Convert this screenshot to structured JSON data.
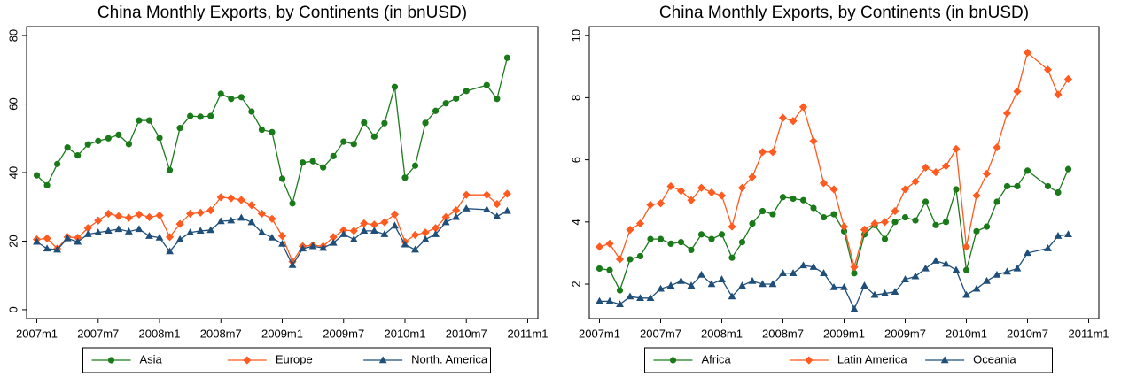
{
  "chart_data": [
    {
      "type": "line",
      "title": "China Monthly Exports, by Continents (in bnUSD)",
      "x": [
        0,
        1,
        2,
        3,
        4,
        5,
        6,
        7,
        8,
        9,
        10,
        11,
        12,
        13,
        14,
        15,
        16,
        17,
        18,
        19,
        20,
        21,
        22,
        23,
        24,
        25,
        26,
        27,
        28,
        29,
        30,
        31,
        32,
        33,
        34,
        35,
        36,
        37,
        38,
        39,
        40,
        41,
        42,
        44,
        45,
        46
      ],
      "xlim": [
        -1,
        49
      ],
      "xticks": [
        {
          "value": 0,
          "label": "2007m1"
        },
        {
          "value": 6,
          "label": "2007m7"
        },
        {
          "value": 12,
          "label": "2008m1"
        },
        {
          "value": 18,
          "label": "2008m7"
        },
        {
          "value": 24,
          "label": "2009m1"
        },
        {
          "value": 30,
          "label": "2009m7"
        },
        {
          "value": 36,
          "label": "2010m1"
        },
        {
          "value": 42,
          "label": "2010m7"
        },
        {
          "value": 48,
          "label": "2011m1"
        }
      ],
      "ylim": [
        -2.6,
        82.6
      ],
      "yticks": [
        0,
        20,
        40,
        60,
        80
      ],
      "legend": "bottom",
      "series": [
        {
          "name": "Asia",
          "color": "#1a7a1a",
          "marker": "circle",
          "values": [
            39.2,
            36.3,
            42.5,
            47.3,
            45,
            48.2,
            49.2,
            50,
            51,
            48.3,
            55.2,
            55.2,
            50.1,
            40.7,
            53,
            56.5,
            56.3,
            56.5,
            63,
            61.5,
            62,
            57.8,
            52.5,
            51.8,
            38.2,
            31,
            42.9,
            43.3,
            41.5,
            44.8,
            49,
            48.3,
            54.6,
            50.5,
            54.4,
            65,
            38.5,
            42,
            54.5,
            58,
            60.2,
            61.6,
            63.8,
            65.5,
            61.5,
            73.5
          ]
        },
        {
          "name": "Europe",
          "color": "#ff5a1f",
          "marker": "diamond",
          "values": [
            20.5,
            20.8,
            17.8,
            21.2,
            21,
            23.8,
            26,
            28,
            27.3,
            26.8,
            27.8,
            27,
            27.5,
            21.2,
            25,
            28,
            28.3,
            29,
            32.8,
            32.5,
            32,
            30.5,
            28,
            26.5,
            21.5,
            14,
            18.5,
            18.8,
            18.5,
            21.2,
            23.2,
            23,
            25.2,
            24.8,
            25.5,
            27.8,
            19.8,
            21.8,
            22.5,
            23.8,
            27,
            29,
            33.5,
            33.5,
            30.8,
            33.8
          ]
        },
        {
          "name": "North. America",
          "color": "#1f4e79",
          "marker": "triangle",
          "values": [
            19.8,
            17.8,
            17.5,
            20.8,
            19.8,
            22,
            22.5,
            23,
            23.5,
            22.8,
            23.5,
            21.5,
            21,
            17,
            20.5,
            22.5,
            23,
            23.2,
            25.8,
            26,
            26.8,
            25.5,
            22.5,
            21,
            19.2,
            13,
            17.8,
            18.5,
            18,
            19.5,
            22,
            20.5,
            23,
            23,
            22,
            24.5,
            19,
            17.5,
            20.5,
            22,
            25.5,
            27,
            29.5,
            29.2,
            27.2,
            28.8
          ]
        }
      ]
    },
    {
      "type": "line",
      "title": "China Monthly Exports, by Continents (in bnUSD)",
      "x": [
        0,
        1,
        2,
        3,
        4,
        5,
        6,
        7,
        8,
        9,
        10,
        11,
        12,
        13,
        14,
        15,
        16,
        17,
        18,
        19,
        20,
        21,
        22,
        23,
        24,
        25,
        26,
        27,
        28,
        29,
        30,
        31,
        32,
        33,
        34,
        35,
        36,
        37,
        38,
        39,
        40,
        41,
        42,
        44,
        45,
        46
      ],
      "xlim": [
        -1,
        49
      ],
      "xticks": [
        {
          "value": 0,
          "label": "2007m1"
        },
        {
          "value": 6,
          "label": "2007m7"
        },
        {
          "value": 12,
          "label": "2008m1"
        },
        {
          "value": 18,
          "label": "2008m7"
        },
        {
          "value": 24,
          "label": "2009m1"
        },
        {
          "value": 30,
          "label": "2009m7"
        },
        {
          "value": 36,
          "label": "2010m1"
        },
        {
          "value": 42,
          "label": "2010m7"
        },
        {
          "value": 48,
          "label": "2011m1"
        }
      ],
      "ylim": [
        0.89,
        10.29
      ],
      "yticks": [
        2,
        4,
        6,
        8,
        10
      ],
      "legend": "bottom",
      "series": [
        {
          "name": "Africa",
          "color": "#1a7a1a",
          "marker": "circle",
          "values": [
            2.5,
            2.45,
            1.8,
            2.8,
            2.9,
            3.45,
            3.45,
            3.3,
            3.35,
            3.1,
            3.6,
            3.45,
            3.6,
            2.85,
            3.35,
            3.95,
            4.35,
            4.25,
            4.8,
            4.75,
            4.7,
            4.45,
            4.15,
            4.25,
            3.7,
            2.35,
            3.6,
            3.9,
            3.45,
            4,
            4.15,
            4.05,
            4.65,
            3.9,
            4,
            5.05,
            2.45,
            3.7,
            3.85,
            4.65,
            5.15,
            5.15,
            5.65,
            5.15,
            4.95,
            5.7
          ]
        },
        {
          "name": "Latin America",
          "color": "#ff5a1f",
          "marker": "diamond",
          "values": [
            3.2,
            3.3,
            2.8,
            3.75,
            3.95,
            4.55,
            4.6,
            5.15,
            5,
            4.7,
            5.1,
            4.95,
            4.85,
            3.85,
            5.1,
            5.45,
            6.25,
            6.25,
            7.35,
            7.25,
            7.7,
            6.6,
            5.25,
            5.05,
            3.85,
            2.55,
            3.75,
            3.95,
            4,
            4.35,
            5.05,
            5.3,
            5.75,
            5.6,
            5.8,
            6.35,
            3.2,
            4.85,
            5.55,
            6.4,
            7.5,
            8.2,
            9.45,
            8.9,
            8.1,
            8.6
          ]
        },
        {
          "name": "Oceania",
          "color": "#1f4e79",
          "marker": "triangle",
          "values": [
            1.45,
            1.45,
            1.35,
            1.6,
            1.55,
            1.55,
            1.85,
            1.95,
            2.1,
            1.95,
            2.3,
            2,
            2.15,
            1.6,
            1.95,
            2.1,
            2,
            2,
            2.35,
            2.35,
            2.6,
            2.55,
            2.35,
            1.9,
            1.9,
            1.2,
            1.95,
            1.65,
            1.7,
            1.75,
            2.15,
            2.25,
            2.5,
            2.75,
            2.65,
            2.45,
            1.65,
            1.85,
            2.1,
            2.3,
            2.4,
            2.5,
            3,
            3.15,
            3.55,
            3.6
          ]
        }
      ]
    }
  ]
}
